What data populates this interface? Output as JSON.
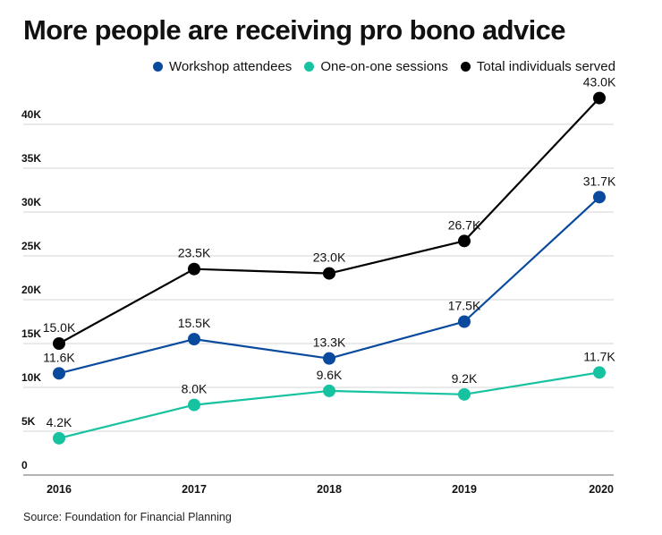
{
  "chart_data": {
    "type": "line",
    "title": "More people are receiving pro bono advice",
    "xlabel": "",
    "ylabel": "",
    "categories": [
      "2016",
      "2017",
      "2018",
      "2019",
      "2020"
    ],
    "ylim": [
      0,
      43000
    ],
    "yticks": [
      {
        "value": 0,
        "label": "0"
      },
      {
        "value": 5000,
        "label": "5K"
      },
      {
        "value": 10000,
        "label": "10K"
      },
      {
        "value": 15000,
        "label": "15K"
      },
      {
        "value": 20000,
        "label": "20K"
      },
      {
        "value": 25000,
        "label": "25K"
      },
      {
        "value": 30000,
        "label": "30K"
      },
      {
        "value": 35000,
        "label": "35K"
      },
      {
        "value": 40000,
        "label": "40K"
      }
    ],
    "grid": true,
    "legend_position": "top-right",
    "series": [
      {
        "name": "Workshop attendees",
        "color": "#0a4a9e",
        "values": [
          11600,
          15500,
          13300,
          17500,
          31700
        ],
        "labels": [
          "11.6K",
          "15.5K",
          "13.3K",
          "17.5K",
          "31.7K"
        ]
      },
      {
        "name": "One-on-one sessions",
        "color": "#17c2a0",
        "values": [
          4200,
          8000,
          9600,
          9200,
          11700
        ],
        "labels": [
          "4.2K",
          "8.0K",
          "9.6K",
          "9.2K",
          "11.7K"
        ]
      },
      {
        "name": "Total individuals served",
        "color": "#000000",
        "values": [
          15000,
          23500,
          23000,
          26700,
          43000
        ],
        "labels": [
          "15.0K",
          "23.5K",
          "23.0K",
          "26.7K",
          "43.0K"
        ]
      }
    ],
    "source": "Source: Foundation for Financial Planning"
  }
}
